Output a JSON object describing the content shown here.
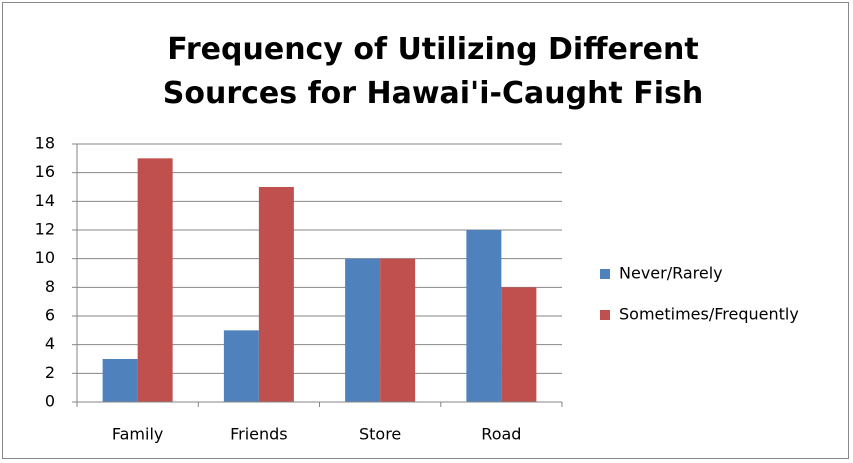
{
  "chart_data": {
    "type": "bar",
    "title": "Frequency of Utilizing Different Sources for Hawai'i-Caught Fish",
    "categories": [
      "Family",
      "Friends",
      "Store",
      "Road"
    ],
    "series": [
      {
        "name": "Never/Rarely",
        "color": "#4f81bd",
        "values": [
          3,
          5,
          10,
          12
        ]
      },
      {
        "name": "Sometimes/Frequently",
        "color": "#c0504d",
        "values": [
          17,
          15,
          10,
          8
        ]
      }
    ],
    "ylim": [
      0,
      18
    ],
    "yticks": [
      0,
      2,
      4,
      6,
      8,
      10,
      12,
      14,
      16,
      18
    ],
    "grid": true,
    "legend": "right"
  }
}
